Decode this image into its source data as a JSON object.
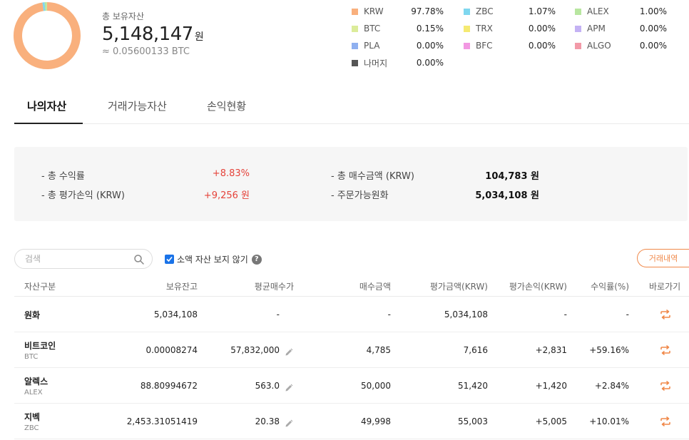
{
  "summary": {
    "label": "총 보유자산",
    "value": "5,148,147",
    "unit": "원",
    "btc": "≈ 0.05600133 BTC"
  },
  "donut": [
    {
      "name": "KRW",
      "pct": 97.78,
      "color": "#f9b07d"
    },
    {
      "name": "ZBC",
      "pct": 1.07,
      "color": "#7fd7ef"
    },
    {
      "name": "ALEX",
      "pct": 1.0,
      "color": "#b8e6a0"
    },
    {
      "name": "BTC",
      "pct": 0.15,
      "color": "#dcec9a"
    }
  ],
  "legend": [
    {
      "name": "KRW",
      "pct": "97.78%",
      "color": "#f9b07d"
    },
    {
      "name": "ZBC",
      "pct": "1.07%",
      "color": "#7fd7ef"
    },
    {
      "name": "ALEX",
      "pct": "1.00%",
      "color": "#b8e6a0"
    },
    {
      "name": "BTC",
      "pct": "0.15%",
      "color": "#dcec9a"
    },
    {
      "name": "TRX",
      "pct": "0.00%",
      "color": "#f5ea72"
    },
    {
      "name": "APM",
      "pct": "0.00%",
      "color": "#c4b2f4"
    },
    {
      "name": "PLA",
      "pct": "0.00%",
      "color": "#8fb0f0"
    },
    {
      "name": "BFC",
      "pct": "0.00%",
      "color": "#f298e2"
    },
    {
      "name": "ALGO",
      "pct": "0.00%",
      "color": "#f29aa8"
    },
    {
      "name": "나머지",
      "pct": "0.00%",
      "color": "#555555"
    }
  ],
  "tabs": [
    "나의자산",
    "거래가능자산",
    "손익현황"
  ],
  "stats": {
    "return_label": "- 총 수익률",
    "return_value": "+8.83%",
    "pnl_label": "- 총 평가손익 (KRW)",
    "pnl_value": "+9,256 원",
    "buy_label": "- 총 매수금액 (KRW)",
    "buy_value": "104,783 원",
    "avail_label": "- 주문가능원화",
    "avail_value": "5,034,108 원"
  },
  "filter": {
    "search_placeholder": "검색",
    "hide_small_label": "소액 자산 보지 않기",
    "help": "?",
    "history_button": "거래내역"
  },
  "table": {
    "headers": [
      "자산구분",
      "보유잔고",
      "평균매수가",
      "매수금액",
      "평가금액(KRW)",
      "평가손익(KRW)",
      "수익률(%)",
      "바로가기"
    ],
    "rows": [
      {
        "name": "원화",
        "symbol": "",
        "balance": "5,034,108",
        "avg": "-",
        "buy": "-",
        "eval": "5,034,108",
        "pnl": "-",
        "rate": "-",
        "editable": false
      },
      {
        "name": "비트코인",
        "symbol": "BTC",
        "balance": "0.00008274",
        "avg": "57,832,000",
        "buy": "4,785",
        "eval": "7,616",
        "pnl": "+2,831",
        "rate": "+59.16%",
        "editable": true
      },
      {
        "name": "알렉스",
        "symbol": "ALEX",
        "balance": "88.80994672",
        "avg": "563.0",
        "buy": "50,000",
        "eval": "51,420",
        "pnl": "+1,420",
        "rate": "+2.84%",
        "editable": true
      },
      {
        "name": "지벡",
        "symbol": "ZBC",
        "balance": "2,453.31051419",
        "avg": "20.38",
        "buy": "49,998",
        "eval": "55,003",
        "pnl": "+5,005",
        "rate": "+10.01%",
        "editable": true
      }
    ]
  },
  "colors": {
    "accent": "#f0894a",
    "profit": "#e5433a"
  }
}
